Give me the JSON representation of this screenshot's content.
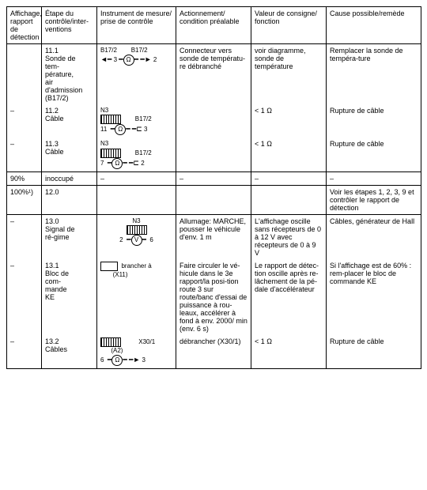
{
  "headers": {
    "c0": "Affichage, rapport de détection",
    "c1": "Étape du contrôle/inter-ventions",
    "c2": "Instrument de mesure/ prise de contrôle",
    "c3": "Actionnement/ condition préalable",
    "c4": "Valeur de consigne/ fonction",
    "c5": "Cause possible/remède"
  },
  "rows": {
    "r1": {
      "c0": "",
      "step_no": "11.1",
      "step_txt": "Sonde de tem-pérature, air d'admission (B17/2)",
      "diag_top_l": "B17/2",
      "diag_top_r": "B17/2",
      "diag_l": "3",
      "diag_r": "2",
      "c3": "Connecteur vers sonde de températu-re débranché",
      "c4": "voir diagramme, sonde de température",
      "c5": "Remplacer la sonde de tempéra-ture"
    },
    "r2": {
      "c0": "–",
      "step_no": "11.2",
      "step_txt": "Câble",
      "n_label": "N3",
      "diag_top_r": "B17/2",
      "diag_l": "11",
      "diag_r": "3",
      "c3": "",
      "c4": "< 1 Ω",
      "c5": "Rupture de câble"
    },
    "r3": {
      "c0": "–",
      "step_no": "11.3",
      "step_txt": "Câble",
      "n_label": "N3",
      "diag_top_r": "B17/2",
      "diag_l": "7",
      "diag_r": "2",
      "c3": "",
      "c4": "< 1 Ω",
      "c5": "Rupture de câble"
    },
    "r4": {
      "c0": "90%",
      "c1": "inoccupé",
      "c2": "–",
      "c3": "–",
      "c4": "–",
      "c5": "–"
    },
    "r5": {
      "c0": "100%¹)",
      "c1": "12.0",
      "c2": "",
      "c3": "",
      "c4": "",
      "c5": "Voir les étapes 1, 2, 3, 9 et contrôler le rapport de détection"
    },
    "r6": {
      "c0": "–",
      "step_no": "13.0",
      "step_txt": "Signal de ré-gime",
      "n_label": "N3",
      "diag_l": "2",
      "diag_r": "6",
      "meter": "V",
      "c3": "Allumage: MARCHE, pousser le véhicule d'env. 1 m",
      "c4": "L'affichage oscille sans récepteurs de 0 à 12 V avec récepteurs de 0 à 9 V",
      "c5": "Câbles, générateur de Hall"
    },
    "r7": {
      "c0": "–",
      "step_no": "13.1",
      "step_txt": "Bloc de com-mande KE",
      "branch_txt": "brancher à",
      "branch_ref": "(X11)",
      "c3": "Faire circuler le vé-hicule dans le 3e rapport/la posi-tion route 3 sur route/banc d'essai de puissance à rou-leaux, accélérer à fond à env. 2000/ min (env. 6 s)",
      "c4": "Le rapport de détec-tion oscille après re-lâchement de la pé-dale d'accélérateur",
      "c5": "Si l'affichage est de 60% : rem-placer le bloc de commande KE"
    },
    "r8": {
      "c0": "–",
      "step_no": "13.2",
      "step_txt": "Câbles",
      "diag_top_r": "X30/1",
      "a_label": "(A2)",
      "diag_l": "6",
      "diag_r": "3",
      "c3": "débrancher (X30/1)",
      "c4": "< 1 Ω",
      "c5": "Rupture de câble"
    }
  }
}
